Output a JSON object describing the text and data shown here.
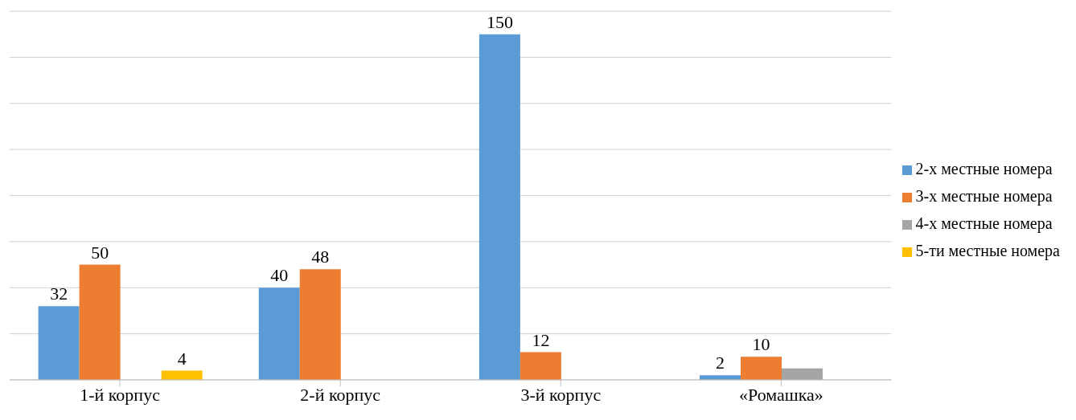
{
  "chart_data": {
    "type": "bar",
    "categories": [
      "1-й корпус",
      "2-й корпус",
      "3-й корпус",
      "«Ромашка»"
    ],
    "series": [
      {
        "name": "2-х местные номера",
        "color": "#5b9bd5",
        "values": [
          32,
          40,
          150,
          2
        ],
        "value_labels": [
          "32",
          "40",
          "150",
          "2"
        ]
      },
      {
        "name": "3-х местные номера",
        "color": "#ed7d31",
        "values": [
          50,
          48,
          12,
          10
        ],
        "value_labels": [
          "50",
          "48",
          "12",
          "10"
        ]
      },
      {
        "name": "4-х местные номера",
        "color": "#a5a5a5",
        "values": [
          null,
          null,
          null,
          5
        ],
        "value_labels": [
          null,
          null,
          null,
          null
        ]
      },
      {
        "name": "5-ти местные номера",
        "color": "#ffc000",
        "values": [
          4,
          null,
          null,
          null
        ],
        "value_labels": [
          "4",
          null,
          null,
          null
        ]
      }
    ],
    "ylim": [
      0,
      160
    ],
    "yticks": [
      {
        "value": 0,
        "label": null
      },
      {
        "value": 20,
        "label": null
      },
      {
        "value": 40,
        "label": null
      },
      {
        "value": 60,
        "label": null
      },
      {
        "value": 80,
        "label": null
      },
      {
        "value": 100,
        "label": null
      },
      {
        "value": 120,
        "label": null
      },
      {
        "value": 140,
        "label": null
      },
      {
        "value": 160,
        "label": null
      }
    ],
    "tick_labels": "x",
    "grid": "y",
    "legend": "right"
  }
}
